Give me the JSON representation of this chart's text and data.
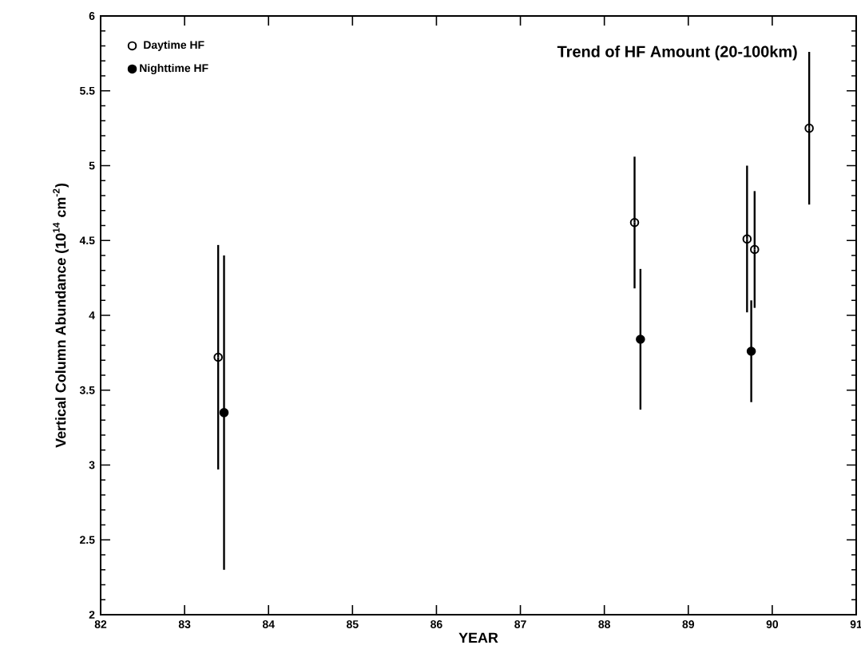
{
  "chart_data": {
    "type": "scatter",
    "title": "Trend of HF Amount (20-100km)",
    "xlabel": "YEAR",
    "ylabel": "Vertical Column Abundance (10$^{14}$ cm$^{-2}$)",
    "xlim": [
      82,
      91
    ],
    "xticks": [
      82,
      83,
      84,
      85,
      86,
      87,
      88,
      89,
      90,
      91
    ],
    "ylim": [
      2,
      6
    ],
    "yticks": [
      2,
      2.5,
      3,
      3.5,
      4,
      4.5,
      5,
      5.5,
      6
    ],
    "legend": "top left",
    "marker": "circle",
    "series": [
      {
        "name": "Daytime HF",
        "color": "#000000",
        "x": [
          83.4,
          88.36,
          89.7,
          89.79,
          90.44
        ],
        "values": [
          3.72,
          4.62,
          4.51,
          4.44,
          5.25
        ],
        "errors": [
          0.75,
          0.44,
          0.49,
          0.39,
          0.51
        ]
      },
      {
        "name": "Nighttime HF",
        "color": "#000000",
        "x": [
          83.47,
          88.43,
          89.75
        ],
        "values": [
          3.35,
          3.84,
          3.76
        ],
        "errors": [
          1.05,
          0.47,
          0.34
        ]
      }
    ]
  }
}
